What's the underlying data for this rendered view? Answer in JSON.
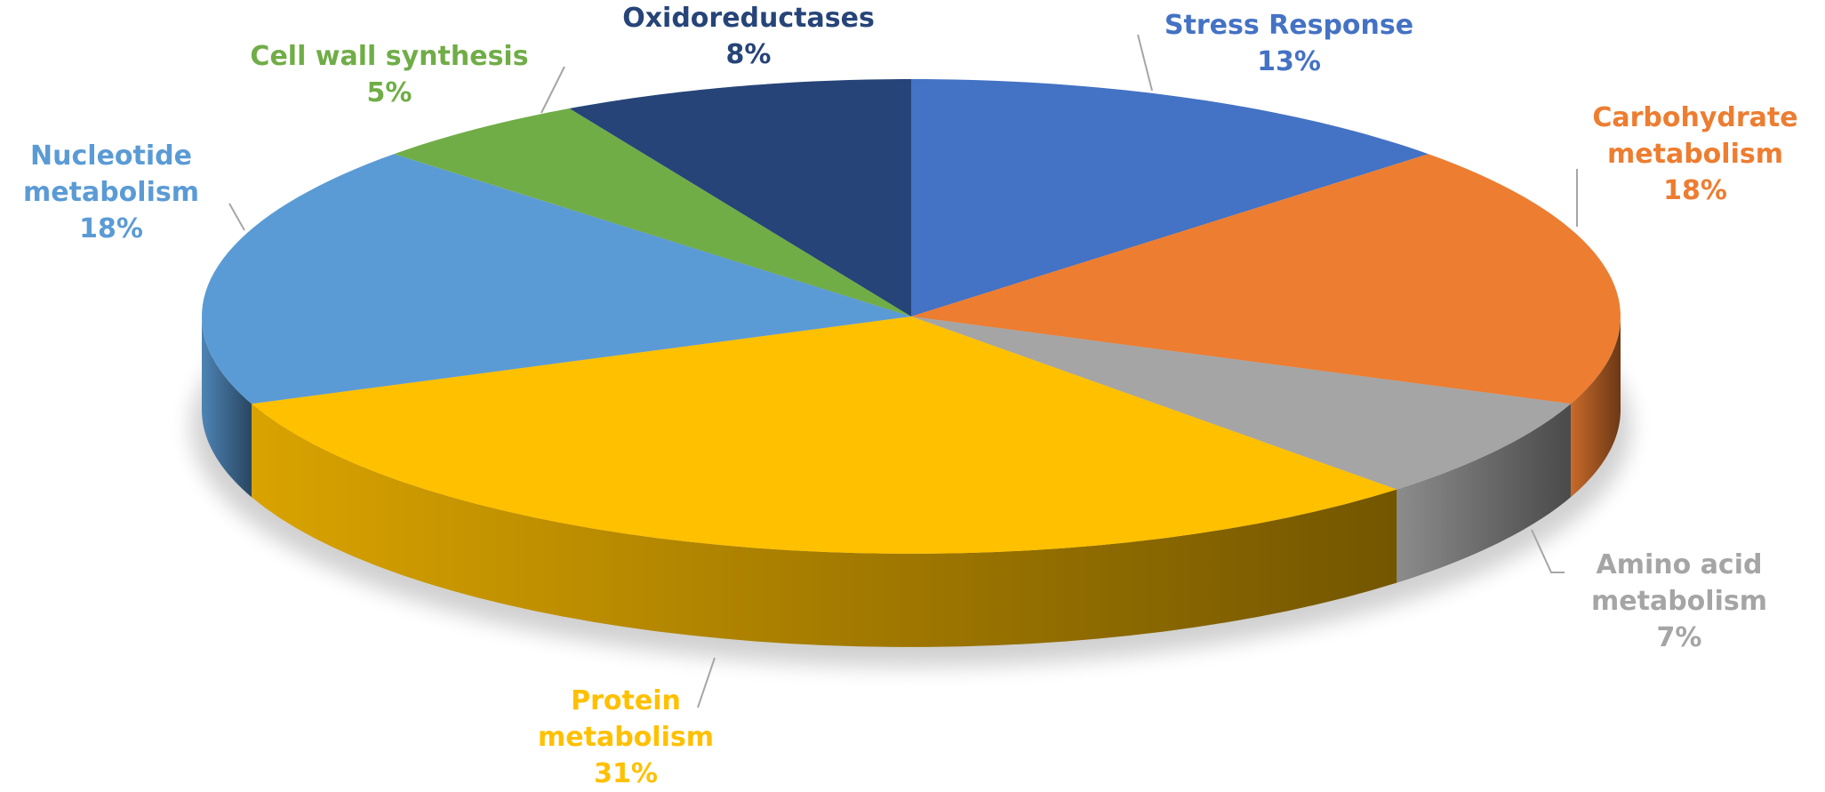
{
  "chart_data": {
    "type": "pie",
    "categories": [
      "Stress Response",
      "Carbohydrate metabolism",
      "Amino acid metabolism",
      "Protein metabolism",
      "Nucleotide metabolism",
      "Cell wall synthesis",
      "Oxidoreductases"
    ],
    "values": [
      13,
      18,
      7,
      31,
      18,
      5,
      8
    ],
    "value_labels": [
      "13%",
      "18%",
      "7%",
      "31%",
      "18%",
      "5%",
      "8%"
    ],
    "colors": [
      "#4472c4",
      "#ed7d31",
      "#a5a5a5",
      "#ffc000",
      "#5b9bd5",
      "#70ad47",
      "#264478"
    ]
  }
}
